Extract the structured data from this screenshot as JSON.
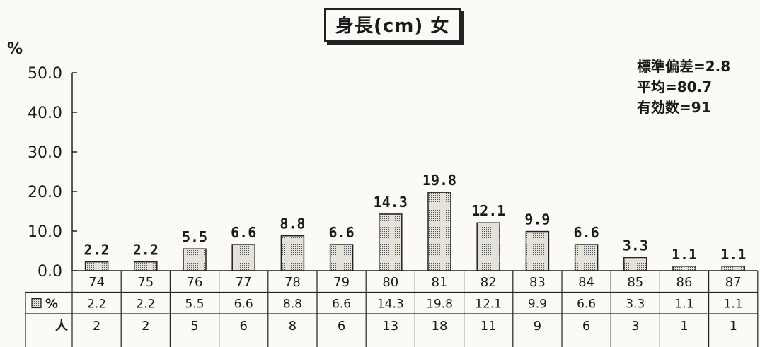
{
  "chart_data": {
    "type": "bar",
    "title": "身長(cm) 女",
    "ylabel": "%",
    "ylim": [
      0,
      50
    ],
    "yticks": [
      "50.0",
      "40.0",
      "30.0",
      "20.0",
      "10.0",
      "0.0"
    ],
    "categories": [
      "74",
      "75",
      "76",
      "77",
      "78",
      "79",
      "80",
      "81",
      "82",
      "83",
      "84",
      "85",
      "86",
      "87"
    ],
    "series": [
      {
        "name": "%",
        "values": [
          2.2,
          2.2,
          5.5,
          6.6,
          8.8,
          6.6,
          14.3,
          19.8,
          12.1,
          9.9,
          6.6,
          3.3,
          1.1,
          1.1
        ]
      }
    ],
    "value_labels": [
      "2.2",
      "2.2",
      "5.5",
      "6.6",
      "8.8",
      "6.6",
      "14.3",
      "19.8",
      "12.1",
      "9.9",
      "6.6",
      "3.3",
      "1.1",
      "1.1"
    ],
    "table": {
      "row_percent_label": "%",
      "row_percent": [
        "2.2",
        "2.2",
        "5.5",
        "6.6",
        "8.8",
        "6.6",
        "14.3",
        "19.8",
        "12.1",
        "9.9",
        "6.6",
        "3.3",
        "1.1",
        "1.1"
      ],
      "row_count_label": "人",
      "row_count": [
        "2",
        "2",
        "5",
        "6",
        "8",
        "6",
        "13",
        "18",
        "11",
        "9",
        "6",
        "3",
        "1",
        "1"
      ]
    },
    "stats": {
      "std_dev": "標準偏差=2.8",
      "mean": "平均=80.7",
      "valid_n": "有効数=91"
    },
    "colors": {
      "bar_fill": "#d9d6cd",
      "line": "#222222"
    }
  }
}
